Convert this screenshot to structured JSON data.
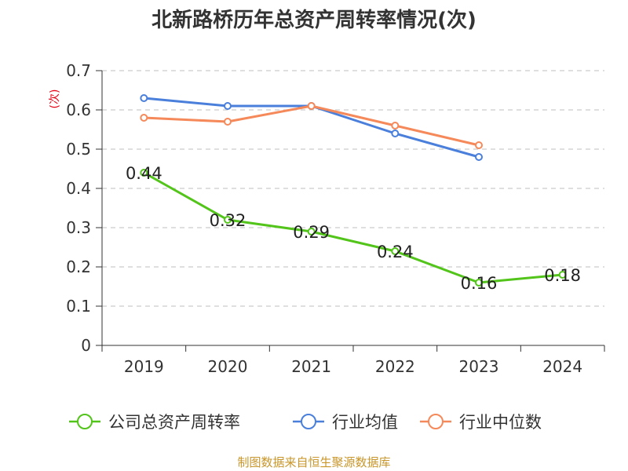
{
  "chart_data": {
    "type": "line",
    "title": "北新路桥历年总资产周转率情况(次)",
    "ylabel": "(次)",
    "xlabel": "",
    "categories": [
      "2019",
      "2020",
      "2021",
      "2022",
      "2023",
      "2024"
    ],
    "ylim": [
      0,
      0.7
    ],
    "yticks": [
      0,
      0.1,
      0.2,
      0.3,
      0.4,
      0.5,
      0.6,
      0.7
    ],
    "ytick_labels": [
      "0",
      "0.1",
      "0.2",
      "0.3",
      "0.4",
      "0.5",
      "0.6",
      "0.7"
    ],
    "grid": true,
    "legend_position": "bottom",
    "series": [
      {
        "name": "公司总资产周转率",
        "color": "#52c41a",
        "values": [
          0.44,
          0.32,
          0.29,
          0.24,
          0.16,
          0.18
        ],
        "labels": [
          "0.44",
          "0.32",
          "0.29",
          "0.24",
          "0.16",
          "0.18"
        ]
      },
      {
        "name": "行业均值",
        "color": "#4a7fdb",
        "values": [
          0.63,
          0.61,
          0.61,
          0.54,
          0.48,
          null
        ],
        "labels": []
      },
      {
        "name": "行业中位数",
        "color": "#f5895a",
        "values": [
          0.58,
          0.57,
          0.61,
          0.56,
          0.51,
          null
        ],
        "labels": []
      }
    ],
    "source": "制图数据来自恒生聚源数据库"
  }
}
